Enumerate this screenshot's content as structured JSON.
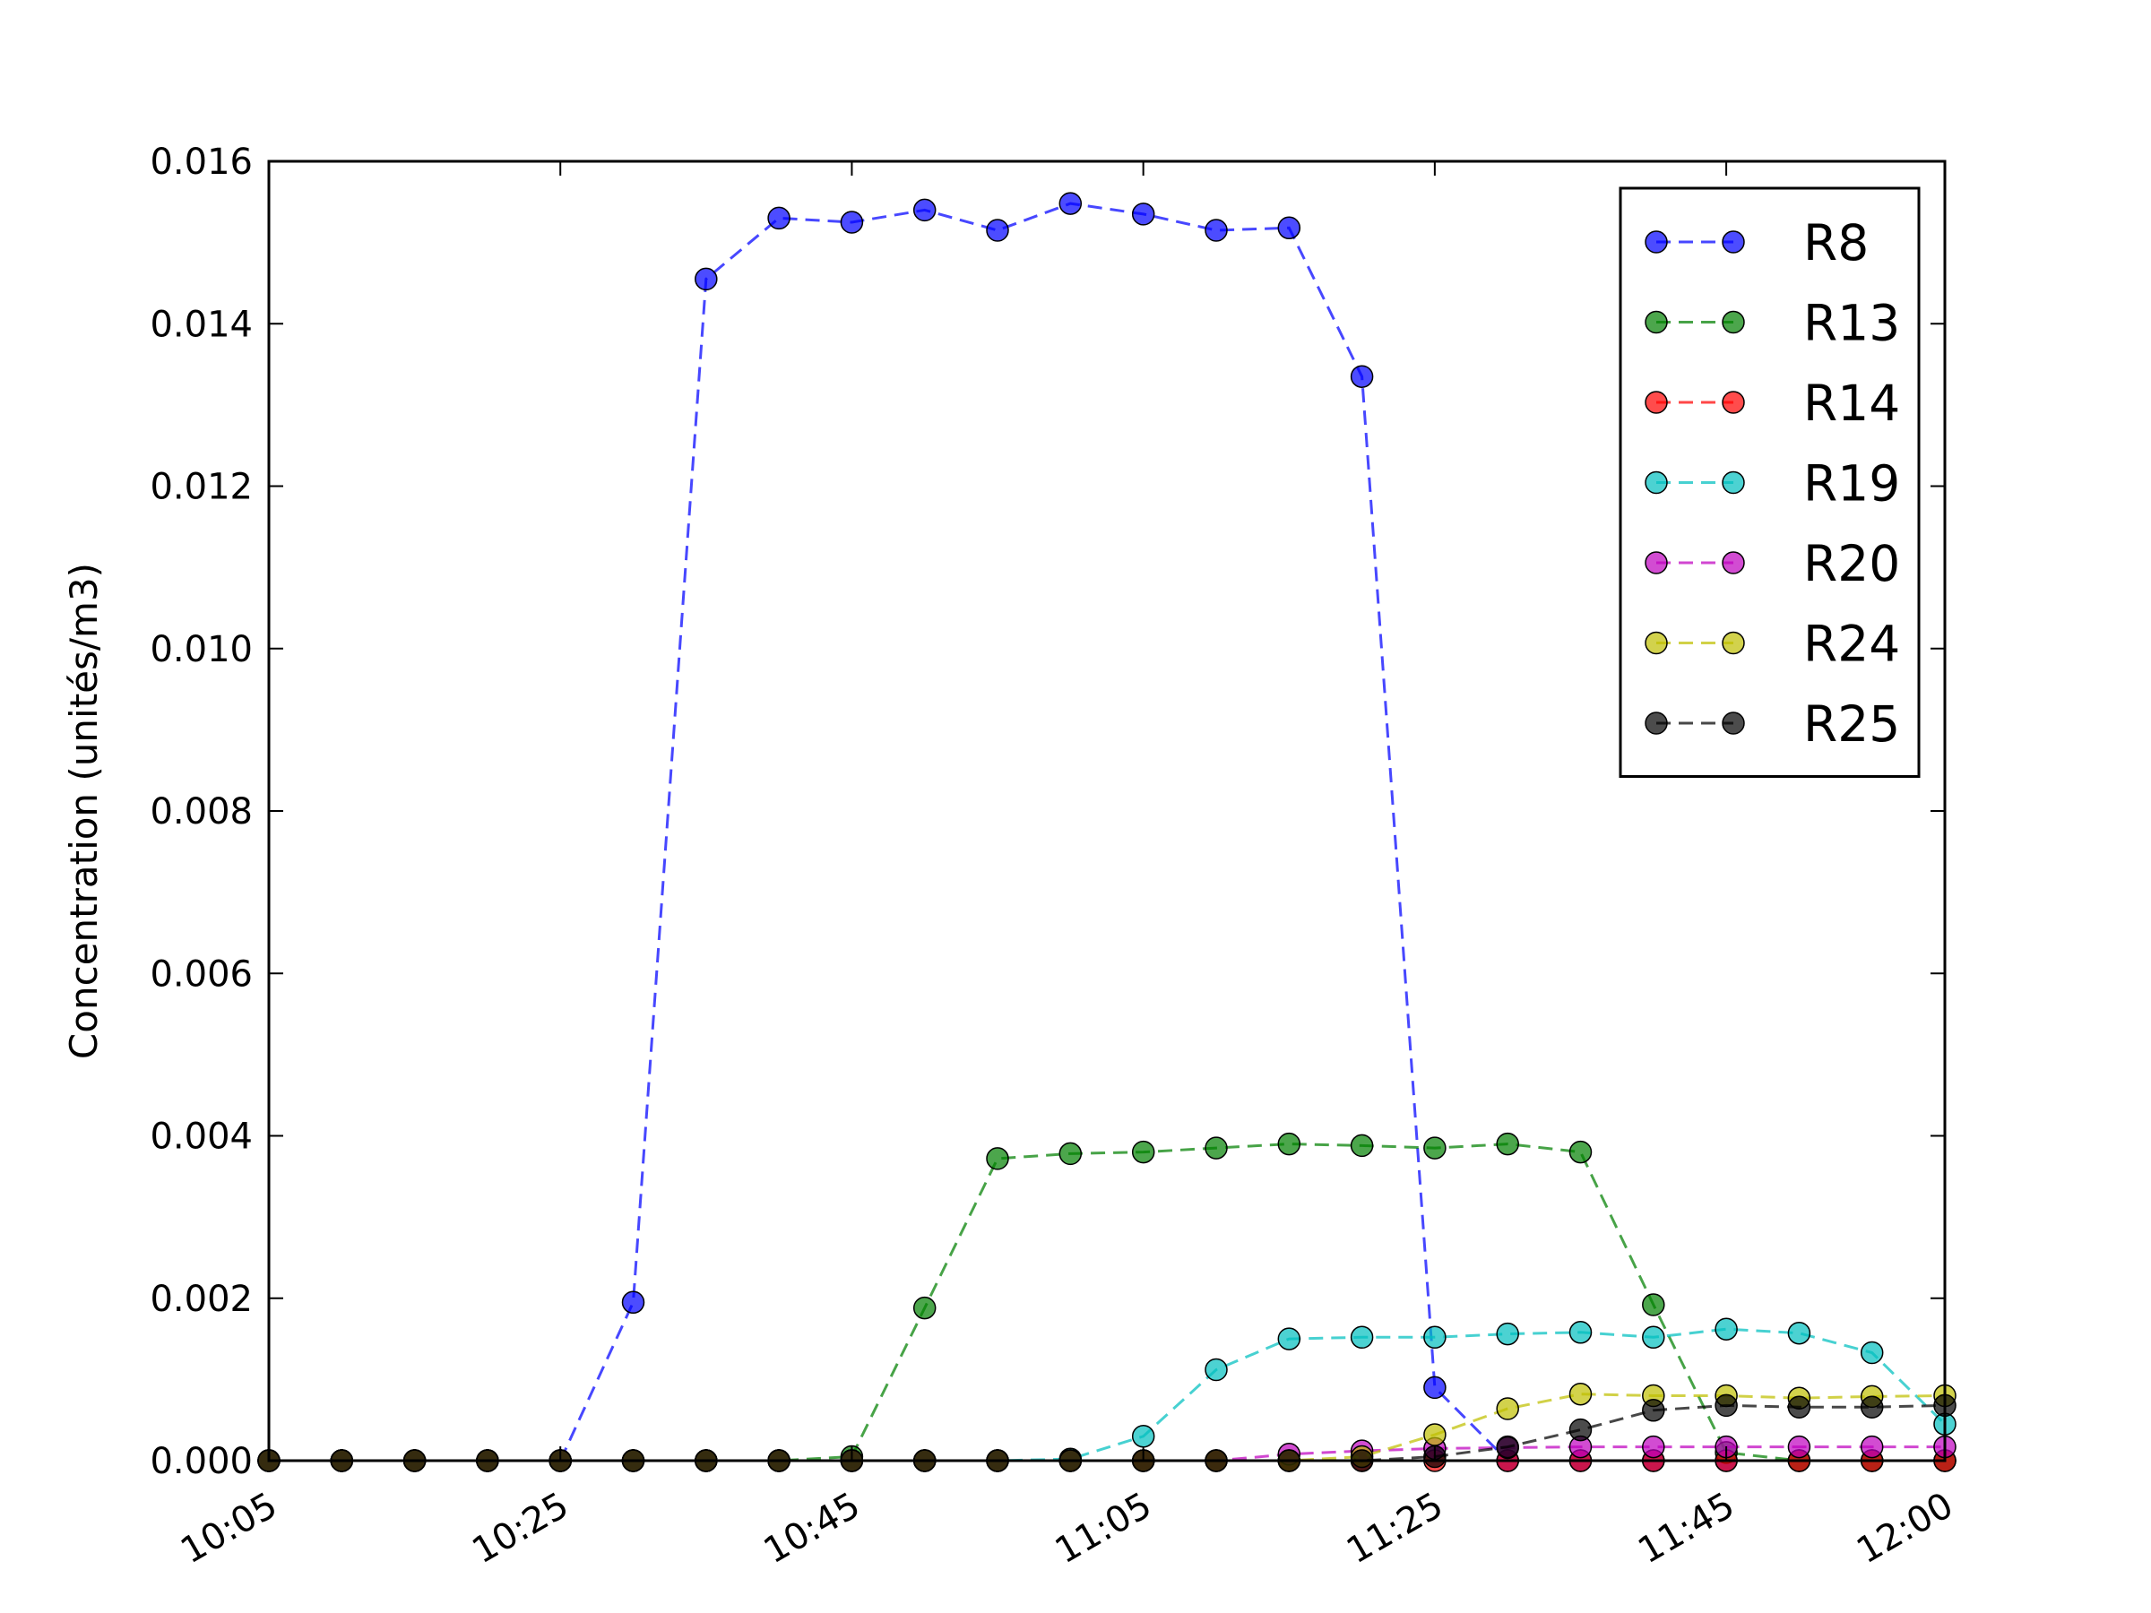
{
  "chart_data": {
    "type": "line",
    "ylabel": "Concentration (unités/m3)",
    "xlabel": "",
    "x": [
      "10:05",
      "10:10",
      "10:15",
      "10:20",
      "10:25",
      "10:30",
      "10:35",
      "10:40",
      "10:45",
      "10:50",
      "10:55",
      "11:00",
      "11:05",
      "11:10",
      "11:15",
      "11:20",
      "11:25",
      "11:30",
      "11:35",
      "11:40",
      "11:45",
      "11:50",
      "11:55",
      "12:00"
    ],
    "x_ticks": [
      "10:05",
      "10:25",
      "10:45",
      "11:05",
      "11:25",
      "11:45",
      "12:00"
    ],
    "xlim": [
      "10:05",
      "12:00"
    ],
    "y_ticks": [
      "0.000",
      "0.002",
      "0.004",
      "0.006",
      "0.008",
      "0.010",
      "0.012",
      "0.014",
      "0.016"
    ],
    "ylim": [
      0,
      0.016
    ],
    "grid": false,
    "legend_position": "top-right",
    "line_style": "dashed",
    "series": [
      {
        "name": "R8",
        "color": "#0000ff",
        "values": [
          0,
          0,
          0,
          0,
          0,
          0.00195,
          0.01455,
          0.0153,
          0.01525,
          0.0154,
          0.01515,
          0.01548,
          0.01535,
          0.01515,
          0.01518,
          0.01335,
          0.0009,
          0,
          0,
          0,
          0,
          0,
          0,
          0
        ]
      },
      {
        "name": "R13",
        "color": "#008000",
        "values": [
          0,
          0,
          0,
          0,
          0,
          0,
          0,
          0,
          5e-05,
          0.00188,
          0.00372,
          0.00378,
          0.0038,
          0.00385,
          0.0039,
          0.00388,
          0.00385,
          0.0039,
          0.0038,
          0.00192,
          0.0001,
          0,
          0,
          0
        ]
      },
      {
        "name": "R14",
        "color": "#ff0000",
        "values": [
          0,
          0,
          0,
          0,
          0,
          0,
          0,
          0,
          0,
          0,
          0,
          0,
          0,
          0,
          0,
          0,
          0,
          0,
          0,
          0,
          0,
          0,
          0,
          0
        ]
      },
      {
        "name": "R19",
        "color": "#00bfbf",
        "values": [
          0,
          0,
          0,
          0,
          0,
          0,
          0,
          0,
          0,
          0,
          0,
          2e-05,
          0.0003,
          0.00112,
          0.0015,
          0.00152,
          0.00152,
          0.00156,
          0.00158,
          0.00152,
          0.00162,
          0.00157,
          0.00133,
          0.00045
        ]
      },
      {
        "name": "R20",
        "color": "#bf00bf",
        "values": [
          0,
          0,
          0,
          0,
          0,
          0,
          0,
          0,
          0,
          0,
          0,
          0,
          0,
          0,
          8e-05,
          0.00012,
          0.00015,
          0.00016,
          0.00017,
          0.00017,
          0.00017,
          0.00017,
          0.00017,
          0.00017
        ]
      },
      {
        "name": "R24",
        "color": "#bfbf00",
        "values": [
          0,
          0,
          0,
          0,
          0,
          0,
          0,
          0,
          0,
          0,
          0,
          0,
          0,
          0,
          0,
          5e-05,
          0.00032,
          0.00064,
          0.00082,
          0.0008,
          0.0008,
          0.00077,
          0.00079,
          0.0008
        ]
      },
      {
        "name": "R25",
        "color": "#000000",
        "values": [
          0,
          0,
          0,
          0,
          0,
          0,
          0,
          0,
          0,
          0,
          0,
          0,
          0,
          0,
          0,
          0,
          5e-05,
          0.00017,
          0.00038,
          0.00062,
          0.00068,
          0.00066,
          0.00066,
          0.00068
        ]
      }
    ]
  }
}
